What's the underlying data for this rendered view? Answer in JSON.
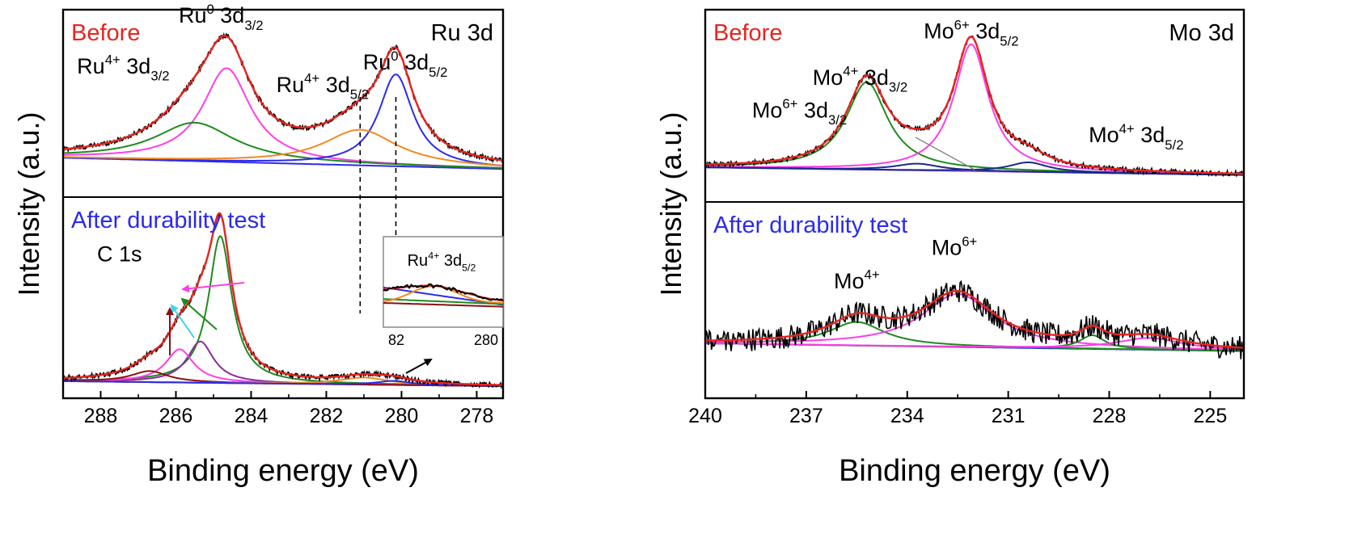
{
  "figure": {
    "colors": {
      "black": "#000000",
      "red": "#e8241f",
      "blue": "#2a2aef",
      "green": "#1f8a1f",
      "magenta": "#ff3de6",
      "orange": "#f08a1f",
      "purple": "#8a2a9a",
      "darkred": "#8a1010",
      "cyan": "#3fd6ef",
      "navy": "#1a2a8a",
      "violet": "#9a4ae6",
      "grey": "#888888"
    }
  },
  "chart_data": [
    {
      "id": "ru",
      "type": "line",
      "title": "Ru 3d",
      "xlabel": "Binding energy (eV)",
      "ylabel": "Intensity (a.u.)",
      "xlim": [
        289,
        277.3
      ],
      "xticks": [
        288,
        286,
        284,
        282,
        280,
        278
      ],
      "tick_labels": [
        "288",
        "286",
        "284",
        "282",
        "280",
        "278"
      ],
      "panels": [
        {
          "label": "Before",
          "label_color": "#e8241f",
          "ylim": [
            0,
            1
          ],
          "annotations": [
            {
              "id": "ru0-32",
              "base": "Ru",
              "sup": "0",
              "mid": " 3d",
              "sub": "3/2",
              "x": 284.8,
              "y": 0.93,
              "color": "#000000"
            },
            {
              "id": "ru4-32",
              "base": "Ru",
              "sup": "4+",
              "mid": " 3d",
              "sub": "3/2",
              "x": 287.4,
              "y": 0.66,
              "color": "#000000"
            },
            {
              "id": "ru4-52",
              "base": "Ru",
              "sup": "4+",
              "mid": " 3d",
              "sub": "5/2",
              "x": 282.1,
              "y": 0.56,
              "color": "#000000"
            },
            {
              "id": "ru0-52",
              "base": "Ru",
              "sup": "0",
              "mid": " 3d",
              "sub": "5/2",
              "x": 279.9,
              "y": 0.68,
              "color": "#000000"
            }
          ],
          "background": {
            "name": "background",
            "color": "#2a2aef",
            "y0": 0.21,
            "y1": 0.15
          },
          "components": [
            {
              "name": "Ru0 3d3/2",
              "color": "#ff3de6",
              "center": 284.65,
              "fwhm": 1.55,
              "amp": 0.5
            },
            {
              "name": "Ru4+ 3d3/2",
              "color": "#1f8a1f",
              "center": 285.5,
              "fwhm": 2.6,
              "amp": 0.205
            },
            {
              "name": "Ru0 3d5/2",
              "color": "#2a2aef",
              "center": 280.15,
              "fwhm": 1.1,
              "amp": 0.49
            },
            {
              "name": "Ru4+ 3d5/2",
              "color": "#f08a1f",
              "center": 281.1,
              "fwhm": 2.4,
              "amp": 0.19
            }
          ],
          "envelope": {
            "name": "fit envelope",
            "color": "#e8241f"
          },
          "measured": {
            "name": "measured",
            "color": "#000000"
          }
        },
        {
          "label": "After durability test",
          "label_color": "#2a2aef",
          "ylim": [
            0,
            1
          ],
          "annotations": [
            {
              "id": "c1s",
              "base": "C 1s",
              "sup": "",
              "mid": "",
              "sub": "",
              "x": 287.5,
              "y": 0.68,
              "color": "#000000"
            }
          ],
          "background": {
            "name": "background",
            "color": "#8a1010",
            "y0": 0.085,
            "y1": 0.06
          },
          "components": [
            {
              "name": "C 1s C-C",
              "color": "#1f8a1f",
              "center": 284.82,
              "fwhm": 0.75,
              "amp": 0.73
            },
            {
              "name": "C 1s C-O",
              "color": "#8a2a9a",
              "center": 285.35,
              "fwhm": 0.85,
              "amp": 0.205
            },
            {
              "name": "C 1s C=O",
              "color": "#ff3de6",
              "center": 285.9,
              "fwhm": 0.9,
              "amp": 0.165
            },
            {
              "name": "C 1s O-C=O",
              "color": "#8a1010",
              "center": 286.7,
              "fwhm": 1.2,
              "amp": 0.055
            },
            {
              "name": "Ru4+ 3d5/2",
              "color": "#f08a1f",
              "center": 281.0,
              "fwhm": 1.6,
              "amp": 0.035
            },
            {
              "name": "Ru0 3d5/2",
              "color": "#2a2aef",
              "center": 280.2,
              "fwhm": 1.1,
              "amp": 0.02
            }
          ],
          "envelope": {
            "name": "fit envelope",
            "color": "#e8241f"
          },
          "measured": {
            "name": "measured",
            "color": "#000000"
          }
        }
      ],
      "guides": [
        280.15,
        281.1
      ],
      "inset": {
        "label_base": "Ru",
        "label_sup": "4+",
        "label_mid": " 3d",
        "label_sub": "5/2",
        "tick_labels": [
          "82",
          "280"
        ],
        "xlim": [
          282.2,
          279.6
        ]
      }
    },
    {
      "id": "mo",
      "type": "line",
      "title": "Mo 3d",
      "xlabel": "Binding energy (eV)",
      "ylabel": "Intensity (a.u.)",
      "xlim": [
        240,
        224
      ],
      "xticks": [
        240,
        237,
        234,
        231,
        228,
        225
      ],
      "tick_labels": [
        "240",
        "237",
        "234",
        "231",
        "228",
        "225"
      ],
      "panels": [
        {
          "label": "Before",
          "label_color": "#e8241f",
          "ylim": [
            0,
            1
          ],
          "annotations": [
            {
              "id": "mo6-52",
              "base": "Mo",
              "sup": "6+",
              "mid": " 3d",
              "sub": "5/2",
              "x": 232.1,
              "y": 0.85,
              "color": "#000000"
            },
            {
              "id": "mo4-32",
              "base": "Mo",
              "sup": "4+",
              "mid": " 3d",
              "sub": "3/2",
              "x": 235.4,
              "y": 0.61,
              "color": "#000000"
            },
            {
              "id": "mo6-32",
              "base": "Mo",
              "sup": "6+",
              "mid": " 3d",
              "sub": "3/2",
              "x": 237.2,
              "y": 0.44,
              "color": "#000000"
            },
            {
              "id": "mo4-52",
              "base": "Mo",
              "sup": "4+",
              "mid": " 3d",
              "sub": "5/2",
              "x": 227.2,
              "y": 0.31,
              "color": "#000000"
            }
          ],
          "background": {
            "name": "background",
            "color": "#9a4ae6",
            "y0": 0.18,
            "y1": 0.14
          },
          "components": [
            {
              "name": "Mo4+ 3d3/2",
              "color": "#1f8a1f",
              "center": 235.2,
              "fwhm": 1.5,
              "amp": 0.455
            },
            {
              "name": "Mo6+ 3d5/2",
              "color": "#ff3de6",
              "center": 232.1,
              "fwhm": 1.25,
              "amp": 0.66
            },
            {
              "name": "Mo6+ 3d3/2",
              "color": "#1a2a8a",
              "center": 233.7,
              "fwhm": 1.6,
              "amp": 0.035
            },
            {
              "name": "Mo4+ 3d5/2",
              "color": "#1a2a8a",
              "center": 230.4,
              "fwhm": 1.4,
              "amp": 0.05
            }
          ],
          "envelope": {
            "name": "fit envelope",
            "color": "#e8241f"
          },
          "measured": {
            "name": "measured",
            "color": "#000000"
          }
        },
        {
          "label": "After durability test",
          "label_color": "#2a2aef",
          "ylim": [
            0,
            1
          ],
          "annotations": [
            {
              "id": "mo4",
              "base": "Mo",
              "sup": "4+",
              "mid": "",
              "sub": "",
              "x": 235.5,
              "y": 0.56,
              "color": "#000000"
            },
            {
              "id": "mo6",
              "base": "Mo",
              "sup": "6+",
              "mid": "",
              "sub": "",
              "x": 232.6,
              "y": 0.73,
              "color": "#000000"
            }
          ],
          "background": {
            "name": "background",
            "color": "#2a2aef",
            "y0": 0.28,
            "y1": 0.24
          },
          "components": [
            {
              "name": "Mo4+",
              "color": "#1f8a1f",
              "center": 235.5,
              "fwhm": 2.0,
              "amp": 0.12
            },
            {
              "name": "Mo6+",
              "color": "#ff3de6",
              "center": 232.5,
              "fwhm": 2.6,
              "amp": 0.27
            },
            {
              "name": "peak 228.5",
              "color": "#1f8a1f",
              "center": 228.5,
              "fwhm": 0.9,
              "amp": 0.07
            },
            {
              "name": "peak 226.8",
              "color": "#ff3de6",
              "center": 226.8,
              "fwhm": 2.4,
              "amp": 0.06
            }
          ],
          "envelope": {
            "name": "fit envelope",
            "color": "#e8241f"
          },
          "measured": {
            "name": "measured",
            "color": "#000000",
            "noise": 0.06
          }
        }
      ]
    }
  ]
}
